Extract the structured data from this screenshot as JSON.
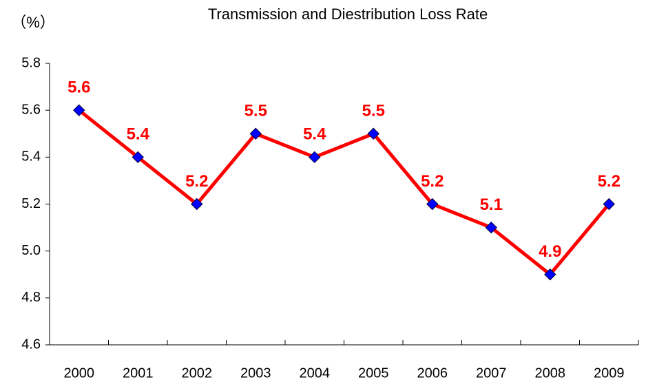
{
  "chart_data": {
    "type": "line",
    "title": "Transmission and Diestribution Loss Rate",
    "y_label": "（%）",
    "categories": [
      "2000",
      "2001",
      "2002",
      "2003",
      "2004",
      "2005",
      "2006",
      "2007",
      "2008",
      "2009"
    ],
    "series": [
      {
        "name": "Loss Rate",
        "color": "#ff0000",
        "marker_color": "#0000ff",
        "label_color": "#ff0000",
        "values": [
          5.6,
          5.4,
          5.2,
          5.5,
          5.4,
          5.5,
          5.2,
          5.1,
          4.9,
          5.2
        ]
      }
    ],
    "ylim": [
      4.6,
      5.8
    ],
    "yticks": [
      4.6,
      4.8,
      {
        "value": 5,
        "label": "5.0"
      },
      5.2,
      5.4,
      5.6,
      5.8
    ],
    "grid": false,
    "legend": false
  }
}
